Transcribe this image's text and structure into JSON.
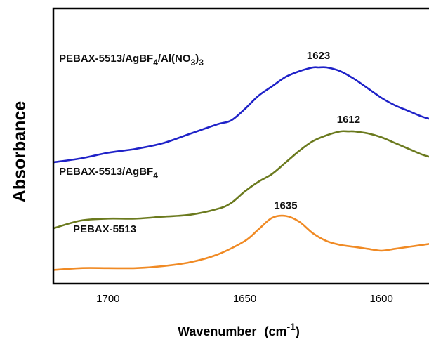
{
  "chart_data": {
    "type": "line",
    "title": "",
    "xlabel": "Wavenumber",
    "xlabel_unit_base": "(cm",
    "xlabel_unit_exp": "-1",
    "xlabel_unit_close": ")",
    "ylabel": "Absorbance",
    "xlim": [
      1720,
      1580
    ],
    "x_reversed": true,
    "x_ticks": [
      1700,
      1650,
      1600
    ],
    "y_ticks_shown": false,
    "grid": false,
    "legend": "none",
    "series": [
      {
        "name": "PEBAX-5513/AgBF4/Al(NO3)3",
        "label_parts": [
          {
            "t": "PEBAX-5513/AgBF"
          },
          {
            "t": "4",
            "sub": true
          },
          {
            "t": "/Al(NO"
          },
          {
            "t": "3",
            "sub": true
          },
          {
            "t": ")"
          },
          {
            "t": "3",
            "sub": true
          }
        ],
        "color": "#1f22c8",
        "peak_label": "1623",
        "peak_x": 1623,
        "x": [
          1720,
          1710,
          1700,
          1690,
          1680,
          1670,
          1660,
          1655,
          1650,
          1645,
          1640,
          1635,
          1630,
          1625,
          1623,
          1620,
          1615,
          1610,
          1605,
          1600,
          1595,
          1590,
          1585,
          1580
        ],
        "y": [
          0.7,
          0.72,
          0.75,
          0.77,
          0.8,
          0.85,
          0.9,
          0.92,
          0.98,
          1.05,
          1.1,
          1.15,
          1.18,
          1.2,
          1.2,
          1.2,
          1.18,
          1.14,
          1.09,
          1.04,
          1.0,
          0.97,
          0.94,
          0.92
        ]
      },
      {
        "name": "PEBAX-5513/AgBF4",
        "label_parts": [
          {
            "t": "PEBAX-5513/AgBF"
          },
          {
            "t": "4",
            "sub": true
          }
        ],
        "color": "#6b7a1e",
        "peak_label": "1612",
        "peak_x": 1612,
        "x": [
          1720,
          1710,
          1700,
          1690,
          1680,
          1670,
          1660,
          1655,
          1650,
          1645,
          1640,
          1635,
          1630,
          1625,
          1620,
          1615,
          1612,
          1610,
          1605,
          1600,
          1595,
          1590,
          1585,
          1580
        ],
        "y": [
          0.38,
          0.42,
          0.43,
          0.43,
          0.44,
          0.45,
          0.48,
          0.51,
          0.57,
          0.62,
          0.66,
          0.72,
          0.78,
          0.83,
          0.86,
          0.88,
          0.88,
          0.88,
          0.87,
          0.85,
          0.82,
          0.79,
          0.76,
          0.74
        ]
      },
      {
        "name": "PEBAX-5513",
        "label_parts": [
          {
            "t": "PEBAX-5513"
          }
        ],
        "color": "#f08a24",
        "peak_label": "1635",
        "peak_x": 1635,
        "x": [
          1720,
          1710,
          1700,
          1690,
          1680,
          1670,
          1660,
          1650,
          1645,
          1640,
          1635,
          1630,
          1625,
          1620,
          1615,
          1610,
          1605,
          1600,
          1595,
          1590,
          1585,
          1580
        ],
        "y": [
          0.18,
          0.19,
          0.19,
          0.19,
          0.2,
          0.22,
          0.26,
          0.33,
          0.39,
          0.45,
          0.46,
          0.43,
          0.37,
          0.33,
          0.31,
          0.3,
          0.29,
          0.28,
          0.29,
          0.3,
          0.31,
          0.32
        ]
      }
    ]
  }
}
